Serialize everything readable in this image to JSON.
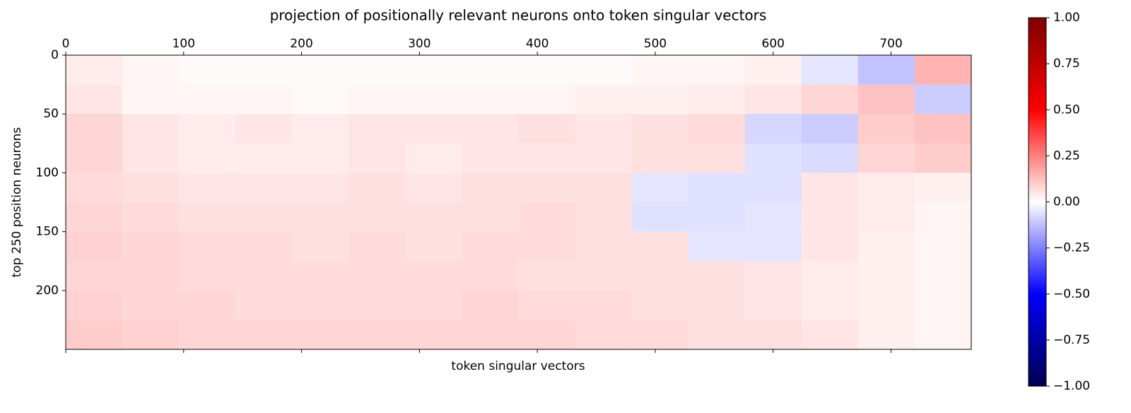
{
  "chart_data": {
    "type": "heatmap",
    "title": "projection of positionally relevant neurons onto token singular vectors",
    "x_label": "token singular vectors",
    "y_label": "top 250 position neurons",
    "cmap": "seismic",
    "x": [
      0,
      48,
      96,
      144,
      192,
      240,
      288,
      336,
      384,
      432,
      480,
      528,
      576,
      624,
      672,
      720,
      768
    ],
    "y": [
      0,
      25,
      50,
      75,
      100,
      125,
      150,
      175,
      200,
      225,
      250
    ],
    "xlim": [
      0,
      768
    ],
    "ylim": [
      250,
      0
    ],
    "xticks": [
      0,
      100,
      200,
      300,
      400,
      500,
      600,
      700
    ],
    "yticks": [
      0,
      50,
      100,
      150,
      200
    ],
    "z": [
      [
        0.04,
        0.02,
        0.01,
        0.01,
        0.01,
        0.01,
        0.01,
        0.01,
        0.01,
        0.01,
        0.02,
        0.02,
        0.03,
        -0.05,
        -0.12,
        0.15
      ],
      [
        0.05,
        0.02,
        0.02,
        0.02,
        0.01,
        0.02,
        0.02,
        0.02,
        0.02,
        0.03,
        0.03,
        0.04,
        0.05,
        0.08,
        0.12,
        -0.1
      ],
      [
        0.08,
        0.05,
        0.04,
        0.05,
        0.04,
        0.05,
        0.05,
        0.05,
        0.06,
        0.05,
        0.06,
        0.07,
        -0.08,
        -0.1,
        0.1,
        0.12
      ],
      [
        0.08,
        0.05,
        0.04,
        0.04,
        0.04,
        0.05,
        0.04,
        0.05,
        0.05,
        0.05,
        0.06,
        0.06,
        -0.06,
        -0.07,
        0.08,
        0.1
      ],
      [
        0.07,
        0.06,
        0.05,
        0.05,
        0.05,
        0.06,
        0.05,
        0.06,
        0.06,
        0.06,
        -0.05,
        -0.06,
        -0.06,
        0.05,
        0.04,
        0.03
      ],
      [
        0.08,
        0.07,
        0.06,
        0.06,
        0.06,
        0.06,
        0.06,
        0.06,
        0.07,
        0.06,
        -0.06,
        -0.06,
        -0.05,
        0.05,
        0.04,
        0.02
      ],
      [
        0.09,
        0.08,
        0.07,
        0.07,
        0.06,
        0.07,
        0.06,
        0.07,
        0.07,
        0.06,
        0.06,
        -0.05,
        -0.05,
        0.05,
        0.03,
        0.02
      ],
      [
        0.08,
        0.08,
        0.07,
        0.07,
        0.07,
        0.07,
        0.07,
        0.07,
        0.06,
        0.06,
        0.06,
        0.06,
        0.05,
        0.04,
        0.03,
        0.02
      ],
      [
        0.09,
        0.08,
        0.08,
        0.07,
        0.07,
        0.07,
        0.07,
        0.08,
        0.07,
        0.07,
        0.06,
        0.06,
        0.05,
        0.04,
        0.03,
        0.02
      ],
      [
        0.1,
        0.09,
        0.08,
        0.08,
        0.08,
        0.08,
        0.08,
        0.08,
        0.08,
        0.07,
        0.07,
        0.06,
        0.06,
        0.05,
        0.03,
        0.02
      ]
    ],
    "clim": [
      -1,
      1
    ],
    "cticks": [
      {
        "value": 1,
        "label": "1.00"
      },
      {
        "value": 0.75,
        "label": "0.75"
      },
      {
        "value": 0.5,
        "label": "0.50"
      },
      {
        "value": 0.25,
        "label": "0.25"
      },
      {
        "value": 0,
        "label": "0.00"
      },
      {
        "value": -0.25,
        "label": "−0.25"
      },
      {
        "value": -0.5,
        "label": "−0.50"
      },
      {
        "value": -0.75,
        "label": "−0.75"
      },
      {
        "value": -1,
        "label": "−1.00"
      }
    ]
  }
}
